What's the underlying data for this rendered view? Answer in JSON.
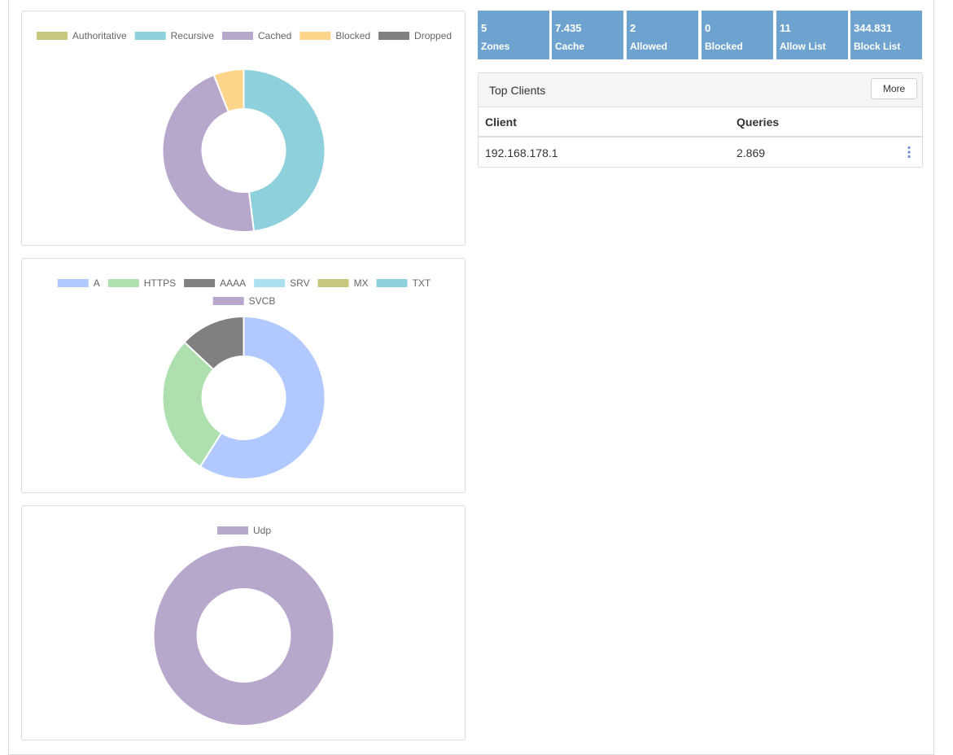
{
  "stats": [
    {
      "value": "5",
      "label": "Zones"
    },
    {
      "value": "7.435",
      "label": "Cache"
    },
    {
      "value": "2",
      "label": "Allowed"
    },
    {
      "value": "0",
      "label": "Blocked"
    },
    {
      "value": "11",
      "label": "Allow List"
    },
    {
      "value": "344.831",
      "label": "Block List"
    }
  ],
  "top_clients": {
    "title": "Top Clients",
    "more_label": "More",
    "columns": [
      "Client",
      "Queries"
    ],
    "rows": [
      {
        "client": "192.168.178.1",
        "queries": "2.869"
      }
    ]
  },
  "chart_data": [
    {
      "type": "pie",
      "labels": [
        "Authoritative",
        "Recursive",
        "Cached",
        "Blocked",
        "Dropped"
      ],
      "values": [
        0,
        48,
        46,
        6,
        0
      ],
      "colors": [
        "#c8c77e",
        "#8ed0db",
        "#b7a7cb",
        "#fdd58a",
        "#808080"
      ]
    },
    {
      "type": "pie",
      "labels": [
        "A",
        "HTTPS",
        "AAAA",
        "SRV",
        "MX",
        "TXT",
        "SVCB"
      ],
      "values": [
        59,
        28,
        13,
        0,
        0,
        0,
        0
      ],
      "colors": [
        "#b2c9ff",
        "#aedfae",
        "#808080",
        "#ade0ee",
        "#c8c77e",
        "#8ed0db",
        "#b7a7cb"
      ]
    },
    {
      "type": "pie",
      "labels": [
        "Udp"
      ],
      "values": [
        100
      ],
      "colors": [
        "#b7a7cb"
      ]
    }
  ]
}
